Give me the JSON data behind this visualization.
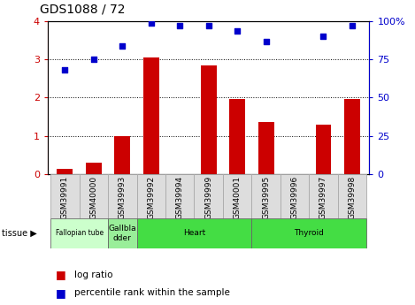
{
  "title": "GDS1088 / 72",
  "samples": [
    "GSM39991",
    "GSM40000",
    "GSM39993",
    "GSM39992",
    "GSM39994",
    "GSM39999",
    "GSM40001",
    "GSM39995",
    "GSM39996",
    "GSM39997",
    "GSM39998"
  ],
  "log_ratio": [
    0.12,
    0.3,
    1.0,
    3.05,
    0.0,
    2.85,
    1.97,
    1.35,
    0.0,
    1.28,
    1.97
  ],
  "percentile_rank": [
    68,
    75,
    84,
    99,
    97,
    97,
    94,
    87,
    null,
    90,
    97
  ],
  "ylim_left": [
    0,
    4
  ],
  "ylim_right": [
    0,
    100
  ],
  "yticks_left": [
    0,
    1,
    2,
    3,
    4
  ],
  "ytick_labels_right": [
    "0",
    "25",
    "50",
    "75",
    "100%"
  ],
  "bar_color": "#cc0000",
  "scatter_color": "#0000cc",
  "tissue_groups": [
    {
      "label": "Fallopian tube",
      "start": 0,
      "end": 2,
      "color": "#ccffcc"
    },
    {
      "label": "Gallbla\ndder",
      "start": 2,
      "end": 3,
      "color": "#99ee99"
    },
    {
      "label": "Heart",
      "start": 3,
      "end": 7,
      "color": "#44dd44"
    },
    {
      "label": "Thyroid",
      "start": 7,
      "end": 11,
      "color": "#44dd44"
    }
  ],
  "tick_label_color_left": "#cc0000",
  "tick_label_color_right": "#0000cc",
  "xtick_box_color": "#dddddd",
  "xtick_box_edge_color": "#aaaaaa"
}
